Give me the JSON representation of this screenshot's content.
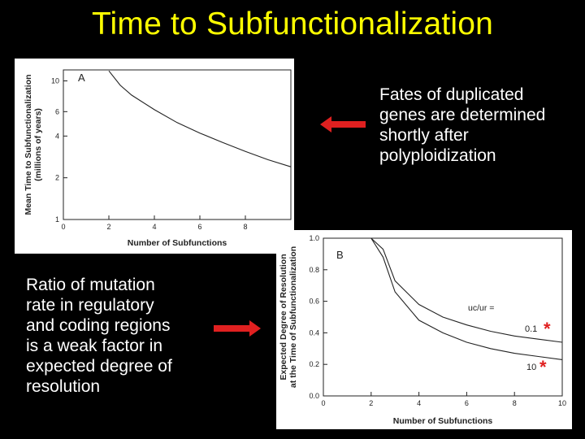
{
  "slide": {
    "title": "Time to Subfunctionalization",
    "note_top_lines": [
      "Fates of duplicated",
      "genes are determined",
      "shortly after",
      "polyploidization"
    ],
    "note_bottom_lines": [
      "Ratio of mutation",
      "rate in regulatory",
      "and coding regions",
      "is a weak factor in",
      "expected degree of",
      "resolution"
    ],
    "colors": {
      "background": "#000000",
      "title": "#ffff00",
      "arrow": "#e02020",
      "asterisk": "#e02020"
    }
  },
  "chart_data": [
    {
      "type": "line",
      "panel_label": "A",
      "title": "",
      "xlabel": "Number of Subfunctions",
      "ylabel_lines": [
        "Mean Time to Subfunctionalization",
        "(millions of years)"
      ],
      "xlim": [
        0,
        10
      ],
      "ylim": [
        1,
        12
      ],
      "x_ticks": [
        0,
        2,
        4,
        6,
        8
      ],
      "y_ticks": [
        1,
        2,
        4,
        6,
        10
      ],
      "y_scale": "log",
      "grid": false,
      "series": [
        {
          "x": [
            2,
            2.5,
            3,
            4,
            5,
            6,
            7,
            8,
            9,
            10
          ],
          "y": [
            11.8,
            9.3,
            7.9,
            6.2,
            5.0,
            4.2,
            3.6,
            3.1,
            2.7,
            2.4
          ]
        }
      ]
    },
    {
      "type": "line",
      "panel_label": "B",
      "title": "",
      "xlabel": "Number of Subfunctions",
      "ylabel_lines": [
        "Expected Degree of Resolution",
        "at the Time of Subfunctionalization"
      ],
      "xlim": [
        0,
        10
      ],
      "ylim": [
        0,
        1.0
      ],
      "x_ticks": [
        0,
        2,
        4,
        6,
        8,
        10
      ],
      "y_ticks": [
        0.0,
        0.2,
        0.4,
        0.6,
        0.8,
        1.0
      ],
      "y_tick_labels": [
        "0.0",
        "0.2",
        "0.4",
        "0.6",
        "0.8",
        "1.0"
      ],
      "grid": false,
      "legend_header": "uc/ur =",
      "series": [
        {
          "name": "0.1",
          "x": [
            2,
            2.5,
            3,
            4,
            5,
            6,
            7,
            8,
            9,
            10
          ],
          "y": [
            1.0,
            0.93,
            0.73,
            0.58,
            0.5,
            0.45,
            0.41,
            0.38,
            0.36,
            0.34
          ]
        },
        {
          "name": "10",
          "x": [
            2,
            2.5,
            3,
            4,
            5,
            6,
            7,
            8,
            9,
            10
          ],
          "y": [
            1.0,
            0.88,
            0.66,
            0.48,
            0.4,
            0.34,
            0.3,
            0.27,
            0.25,
            0.23
          ]
        }
      ]
    }
  ]
}
